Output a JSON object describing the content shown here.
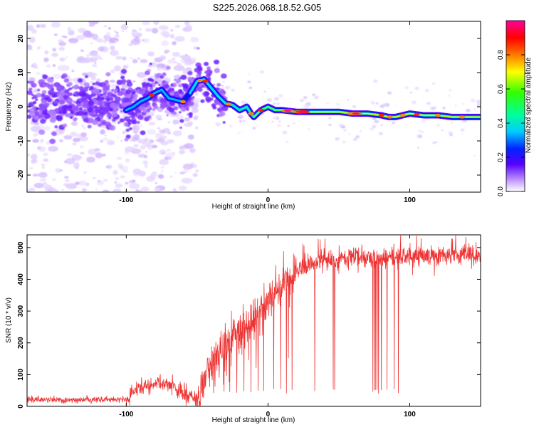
{
  "figure": {
    "title": "S225.2026.068.18.52.G05"
  },
  "chart_data": [
    {
      "type": "heatmap",
      "title": "",
      "xlabel": "Height of straight line (km)",
      "ylabel": "Frequency (Hz)",
      "xlim": [
        -170,
        150
      ],
      "ylim": [
        -25,
        25
      ],
      "xticks": [
        -100,
        0,
        100
      ],
      "yticks": [
        -20,
        -10,
        0,
        10,
        20
      ],
      "ridge": {
        "x": [
          -100,
          -95,
          -90,
          -85,
          -80,
          -75,
          -70,
          -65,
          -60,
          -55,
          -50,
          -45,
          -40,
          -35,
          -30,
          -25,
          -20,
          -15,
          -12,
          -10,
          -5,
          0,
          5,
          10,
          20,
          30,
          40,
          50,
          60,
          70,
          80,
          85,
          90,
          95,
          100,
          110,
          120,
          130,
          140,
          150
        ],
        "y": [
          -1,
          0,
          1.5,
          2.5,
          4,
          5,
          2.5,
          2,
          1.5,
          4,
          7.5,
          8,
          5.5,
          3,
          1,
          0.5,
          -1,
          0,
          -2,
          -3,
          -1,
          0,
          -1,
          -1,
          -1.5,
          -1.5,
          -1.5,
          -1.5,
          -2,
          -2,
          -2.5,
          -3,
          -3,
          -2.5,
          -2,
          -2.5,
          -2.5,
          -3,
          -3,
          -3
        ]
      },
      "colorbar": {
        "label": "Normalized spectral amplitude",
        "range": [
          0,
          1
        ],
        "ticks": [
          "0.0",
          "0.2",
          "0.4",
          "0.6",
          "0.8"
        ],
        "tick_values": [
          0,
          0.2,
          0.4,
          0.6,
          0.8
        ]
      }
    },
    {
      "type": "line",
      "title": "",
      "xlabel": "Height of straight line (km)",
      "ylabel": "SNR (10 * v/v)",
      "xlim": [
        -170,
        150
      ],
      "ylim": [
        0,
        540
      ],
      "xticks": [
        -100,
        0,
        100
      ],
      "yticks": [
        0,
        100,
        200,
        300,
        400,
        500
      ],
      "color": "#ee3333",
      "trend": {
        "x": [
          -170,
          -100,
          -90,
          -80,
          -70,
          -60,
          -50,
          -45,
          -40,
          -35,
          -30,
          -25,
          -20,
          -15,
          -10,
          -5,
          0,
          5,
          10,
          15,
          20,
          25,
          30,
          40,
          50,
          60,
          80,
          100,
          120,
          150
        ],
        "y": [
          20,
          22,
          60,
          70,
          75,
          40,
          25,
          60,
          130,
          160,
          190,
          210,
          230,
          260,
          280,
          300,
          330,
          350,
          380,
          400,
          420,
          440,
          450,
          460,
          460,
          470,
          465,
          470,
          475,
          480
        ]
      },
      "dropouts": [
        -31,
        -27,
        -22,
        -17,
        -12,
        -7,
        -3,
        4,
        9,
        13,
        17,
        33,
        46,
        47,
        74,
        75,
        76,
        77,
        78,
        80,
        84,
        89,
        92
      ]
    }
  ]
}
